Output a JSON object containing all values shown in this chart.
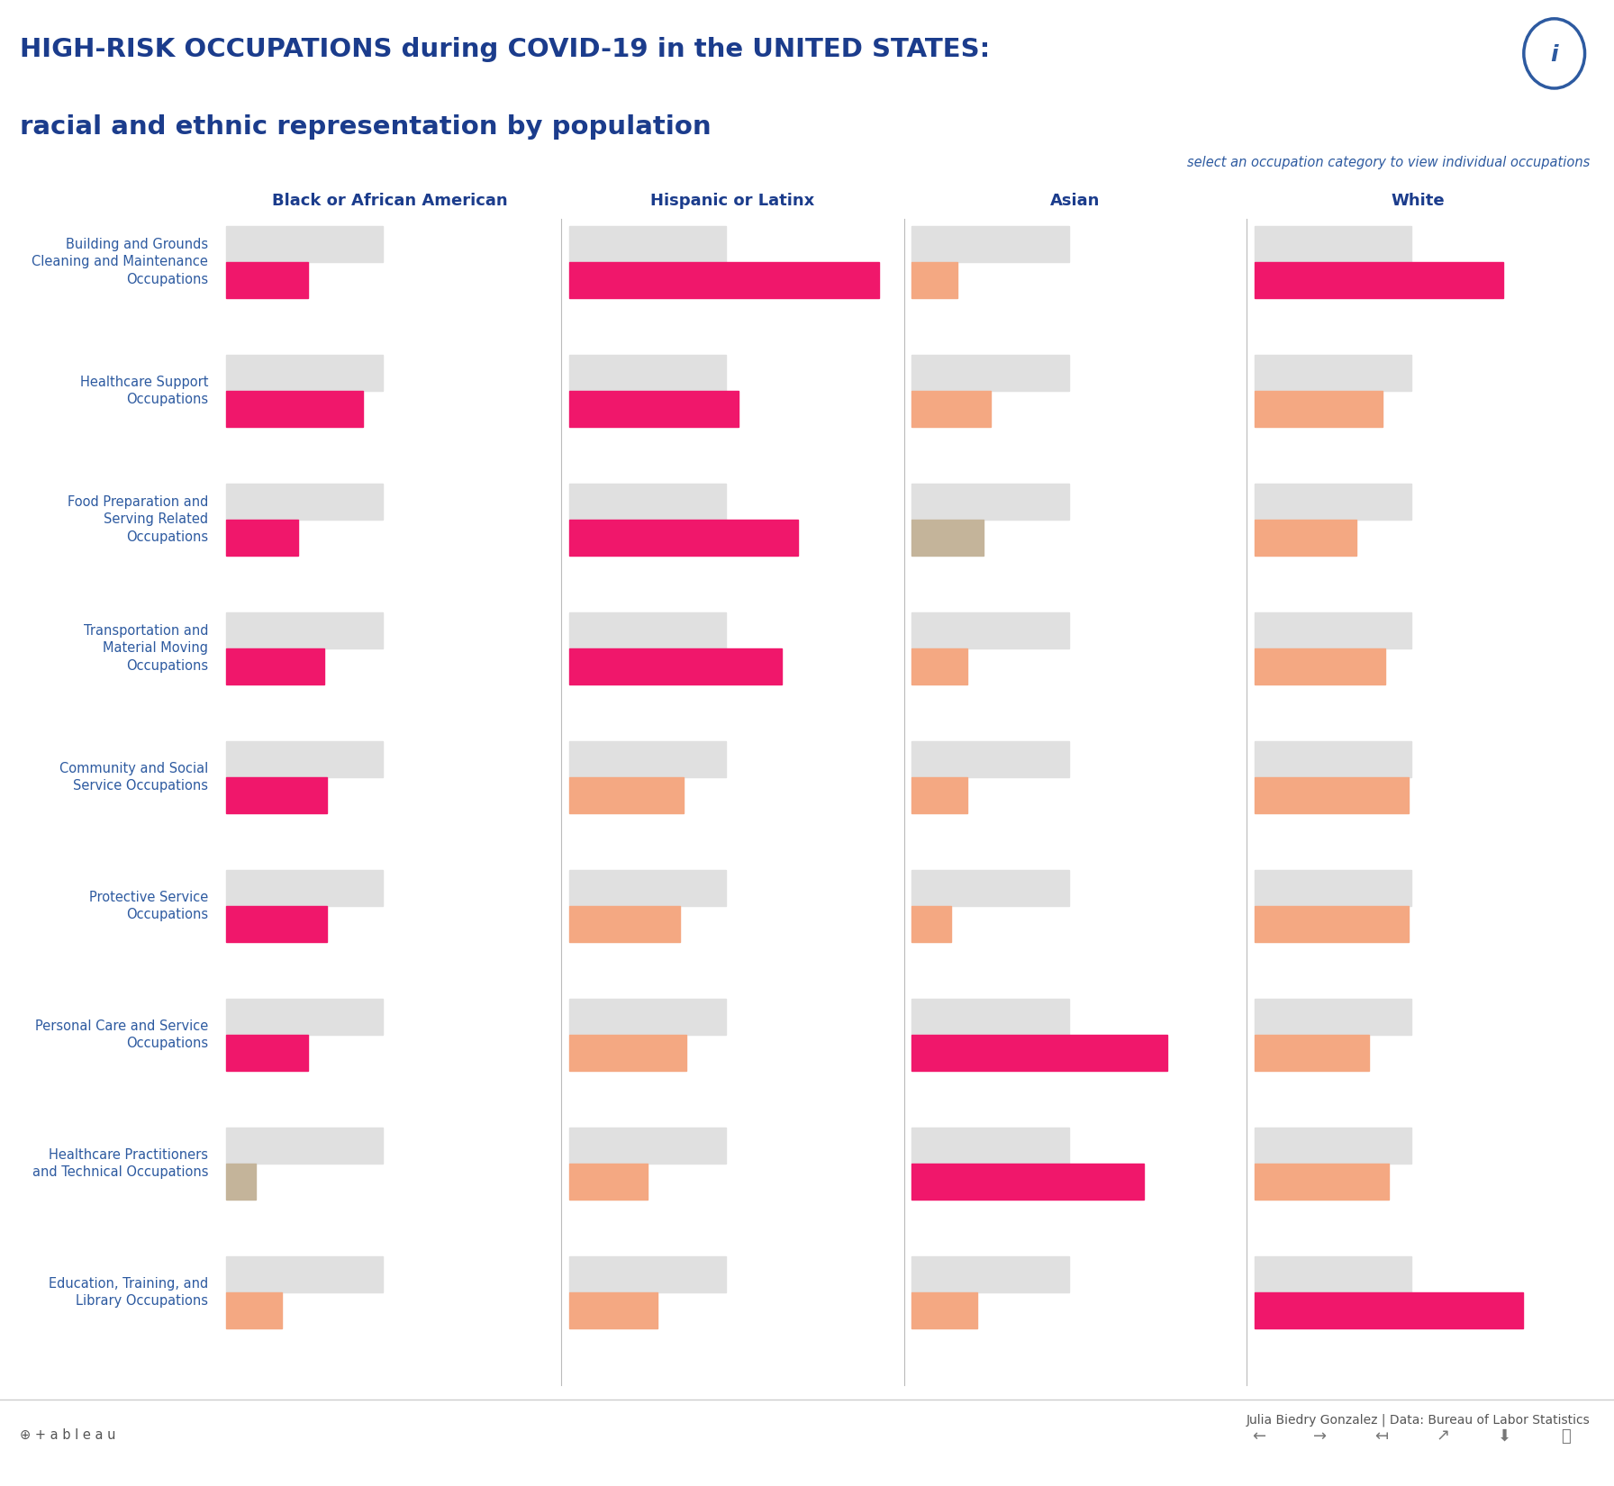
{
  "title_line1": "HIGH-RISK OCCUPATIONS during COVID-19 in the UNITED STATES:",
  "title_line2": "racial and ethnic representation by population",
  "subtitle": "select an occupation category to view individual occupations",
  "credit": "Julia Biedry Gonzalez | Data: Bureau of Labor Statistics",
  "columns": [
    "Black or African American",
    "Hispanic or Latinx",
    "Asian",
    "White"
  ],
  "categories": [
    "Building and Grounds\nCleaning and Maintenance\nOccupations",
    "Healthcare Support\nOccupations",
    "Food Preparation and\nServing Related\nOccupations",
    "Transportation and\nMaterial Moving\nOccupations",
    "Community and Social\nService Occupations",
    "Protective Service\nOccupations",
    "Personal Care and Service\nOccupations",
    "Healthcare Practitioners\nand Technical Occupations",
    "Education, Training, and\nLibrary Occupations"
  ],
  "max_val": 1.0,
  "bg_bars": {
    "Black or African American": [
      0.48,
      0.48,
      0.48,
      0.48,
      0.48,
      0.48,
      0.48,
      0.48,
      0.48
    ],
    "Hispanic or Latinx": [
      0.48,
      0.48,
      0.48,
      0.48,
      0.48,
      0.48,
      0.48,
      0.48,
      0.48
    ],
    "Asian": [
      0.48,
      0.48,
      0.48,
      0.48,
      0.48,
      0.48,
      0.48,
      0.48,
      0.48
    ],
    "White": [
      0.48,
      0.48,
      0.48,
      0.48,
      0.48,
      0.48,
      0.48,
      0.48,
      0.48
    ]
  },
  "fg_bars": {
    "Black or African American": [
      0.25,
      0.42,
      0.22,
      0.3,
      0.31,
      0.31,
      0.25,
      0.09,
      0.17
    ],
    "Hispanic or Latinx": [
      0.95,
      0.52,
      0.7,
      0.65,
      0.35,
      0.34,
      0.36,
      0.24,
      0.27
    ],
    "Asian": [
      0.14,
      0.24,
      0.22,
      0.17,
      0.17,
      0.12,
      0.78,
      0.71,
      0.2
    ],
    "White": [
      0.76,
      0.39,
      0.31,
      0.4,
      0.47,
      0.47,
      0.35,
      0.41,
      0.82
    ]
  },
  "fg_colors": {
    "Black or African American": [
      "#F0176B",
      "#F0176B",
      "#F0176B",
      "#F0176B",
      "#F0176B",
      "#F0176B",
      "#F0176B",
      "#C4B49A",
      "#F4A882"
    ],
    "Hispanic or Latinx": [
      "#F0176B",
      "#F0176B",
      "#F0176B",
      "#F0176B",
      "#F4A882",
      "#F4A882",
      "#F4A882",
      "#F4A882",
      "#F4A882"
    ],
    "Asian": [
      "#F4A882",
      "#F4A882",
      "#C4B49A",
      "#F4A882",
      "#F4A882",
      "#F4A882",
      "#F0176B",
      "#F0176B",
      "#F4A882"
    ],
    "White": [
      "#F0176B",
      "#F4A882",
      "#F4A882",
      "#F4A882",
      "#F4A882",
      "#F4A882",
      "#F4A882",
      "#F4A882",
      "#F0176B"
    ]
  },
  "bg_color": "#E0E0E0",
  "title_color": "#1B3C8C",
  "col_header_color": "#1B3C8C",
  "cat_label_color": "#2D5AA0",
  "subtitle_color": "#2D5AA0",
  "credit_color": "#555555",
  "divider_color": "#BBBBBB",
  "footer_line_color": "#CCCCCC"
}
